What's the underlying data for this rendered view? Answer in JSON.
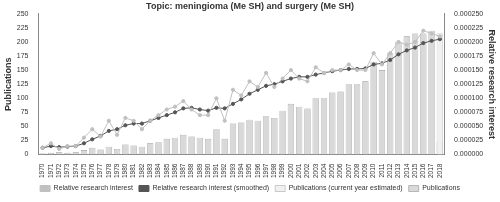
{
  "chart_data": {
    "type": "bar",
    "title": "Topic: meningioma (Me SH) and surgery (Me SH)",
    "y_label": "Publications",
    "y2_label": "Relative research interest",
    "categories": [
      "1970",
      "1971",
      "1972",
      "1973",
      "1974",
      "1975",
      "1976",
      "1977",
      "1978",
      "1979",
      "1980",
      "1981",
      "1982",
      "1983",
      "1984",
      "1985",
      "1986",
      "1987",
      "1988",
      "1989",
      "1990",
      "1991",
      "1992",
      "1993",
      "1994",
      "1995",
      "1996",
      "1997",
      "1998",
      "1999",
      "2000",
      "2001",
      "2002",
      "2003",
      "2004",
      "2005",
      "2006",
      "2007",
      "2008",
      "2009",
      "2010",
      "2011",
      "2012",
      "2013",
      "2014",
      "2015",
      "2016",
      "2017",
      "2018"
    ],
    "series": [
      {
        "name": "Publications",
        "type": "bar",
        "color": "#d9d9d9",
        "values": [
          2,
          3,
          4,
          3,
          4,
          8,
          12,
          9,
          14,
          10,
          18,
          16,
          14,
          20,
          22,
          28,
          30,
          35,
          32,
          30,
          28,
          45,
          28,
          55,
          57,
          62,
          60,
          68,
          65,
          78,
          90,
          85,
          82,
          100,
          100,
          110,
          112,
          125,
          125,
          130,
          165,
          150,
          180,
          200,
          210,
          215,
          215,
          220,
          22
        ]
      },
      {
        "name": "Publications (current year estimated)",
        "type": "bar",
        "color": "#f0f0f0",
        "values": [
          null,
          null,
          null,
          null,
          null,
          null,
          null,
          null,
          null,
          null,
          null,
          null,
          null,
          null,
          null,
          null,
          null,
          null,
          null,
          null,
          null,
          null,
          null,
          null,
          null,
          null,
          null,
          null,
          null,
          null,
          null,
          null,
          null,
          null,
          null,
          null,
          null,
          null,
          null,
          null,
          null,
          null,
          null,
          null,
          null,
          null,
          null,
          null,
          215
        ]
      },
      {
        "name": "Relative research interest",
        "type": "line",
        "axis": "y2",
        "color": "#c0c0c0",
        "marker": "circle",
        "line_style": "solid",
        "values": [
          1.2e-05,
          2e-05,
          1e-05,
          1.5e-05,
          1.5e-05,
          3e-05,
          4.5e-05,
          3.2e-05,
          6e-05,
          3.5e-05,
          6.5e-05,
          6e-05,
          4.5e-05,
          6e-05,
          7e-05,
          8e-05,
          8.5e-05,
          9.5e-05,
          8e-05,
          7e-05,
          7e-05,
          0.0001,
          6e-05,
          0.000115,
          0.000105,
          0.00013,
          0.00012,
          0.000145,
          0.00012,
          0.000135,
          0.00015,
          0.000135,
          0.00013,
          0.000155,
          0.000145,
          0.00015,
          0.00015,
          0.00016,
          0.00015,
          0.00015,
          0.00018,
          0.00016,
          0.00018,
          0.0002,
          0.000195,
          0.0002,
          0.00022,
          0.000215,
          0.00021
        ]
      },
      {
        "name": "Relative research interest (smoothed)",
        "type": "line",
        "axis": "y2",
        "color": "#555555",
        "marker": "circle",
        "line_style": "solid",
        "values": [
          1.2e-05,
          1.5e-05,
          1.3e-05,
          1.4e-05,
          1.5e-05,
          2e-05,
          2.7e-05,
          3.3e-05,
          4.2e-05,
          4.5e-05,
          5.2e-05,
          5.5e-05,
          5.5e-05,
          6e-05,
          6.5e-05,
          7e-05,
          7.5e-05,
          8.2e-05,
          8.3e-05,
          8e-05,
          7.8e-05,
          8.3e-05,
          8.2e-05,
          9e-05,
          9.8e-05,
          0.000108,
          0.000115,
          0.000122,
          0.000125,
          0.00013,
          0.000135,
          0.000138,
          0.000138,
          0.000142,
          0.000145,
          0.000148,
          0.00015,
          0.000152,
          0.000152,
          0.000153,
          0.00016,
          0.000162,
          0.000168,
          0.000178,
          0.000185,
          0.00019,
          0.000198,
          0.000202,
          0.000205
        ]
      }
    ],
    "ylim": [
      0,
      250
    ],
    "yticks": [
      0,
      25,
      50,
      75,
      100,
      125,
      150,
      175,
      200,
      225,
      250
    ],
    "y2lim": [
      0,
      0.00025
    ],
    "y2ticks": [
      {
        "value": 0,
        "label": "0.000000"
      },
      {
        "value": 2.5e-05,
        "label": "0.000025"
      },
      {
        "value": 5e-05,
        "label": "0.000050"
      },
      {
        "value": 7.5e-05,
        "label": "0.000075"
      },
      {
        "value": 0.0001,
        "label": "0.000100"
      },
      {
        "value": 0.000125,
        "label": "0.000125"
      },
      {
        "value": 0.00015,
        "label": "0.000150"
      },
      {
        "value": 0.000175,
        "label": "0.000175"
      },
      {
        "value": 0.0002,
        "label": "0.000200"
      },
      {
        "value": 0.000225,
        "label": "0.000225"
      },
      {
        "value": 0.00025,
        "label": "0.000250"
      }
    ],
    "grid": false,
    "legend": "bottom"
  }
}
